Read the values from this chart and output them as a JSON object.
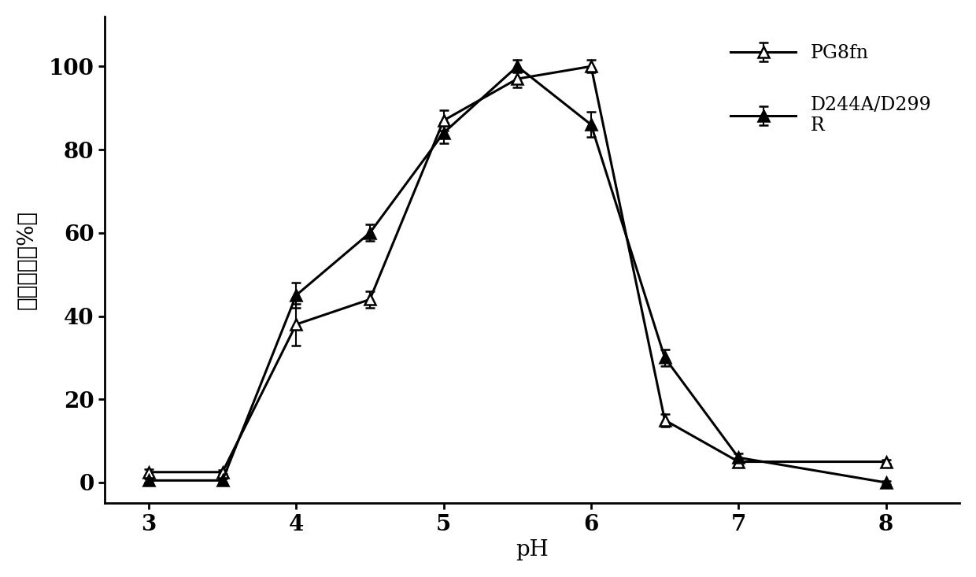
{
  "series": [
    {
      "label": "PG8fn",
      "x": [
        3,
        3.5,
        4,
        4.5,
        5,
        5.5,
        6,
        6.5,
        7,
        8
      ],
      "y": [
        2.5,
        2.5,
        38,
        44,
        87,
        97,
        100,
        15,
        5,
        5
      ],
      "yerr": [
        0.8,
        0.5,
        5,
        2,
        2.5,
        2,
        1.5,
        1.5,
        0.8,
        0.5
      ],
      "marker": "^",
      "markerfacecolor": "white",
      "markeredgecolor": "black",
      "linecolor": "black",
      "linestyle": "-",
      "linewidth": 2.2,
      "markersize": 10
    },
    {
      "label": "D244A/D299\nR",
      "x": [
        3,
        3.5,
        4,
        4.5,
        5,
        5.5,
        6,
        6.5,
        7,
        8
      ],
      "y": [
        0.5,
        0.5,
        45,
        60,
        84,
        100,
        86,
        30,
        6,
        0
      ],
      "yerr": [
        0.5,
        0.5,
        3,
        2,
        2.5,
        1.5,
        3,
        2,
        1,
        0.3
      ],
      "marker": "^",
      "markerfacecolor": "black",
      "markeredgecolor": "black",
      "linecolor": "black",
      "linestyle": "-",
      "linewidth": 2.2,
      "markersize": 10
    }
  ],
  "xlabel": "pH",
  "ylabel": "相对酶活（%）",
  "xlim": [
    2.7,
    8.5
  ],
  "ylim": [
    -5,
    112
  ],
  "xticks": [
    3,
    4,
    5,
    6,
    7,
    8
  ],
  "yticks": [
    0,
    20,
    40,
    60,
    80,
    100
  ],
  "background_color": "#ffffff",
  "legend_fontsize": 17,
  "axis_label_fontsize": 20,
  "tick_fontsize": 20
}
